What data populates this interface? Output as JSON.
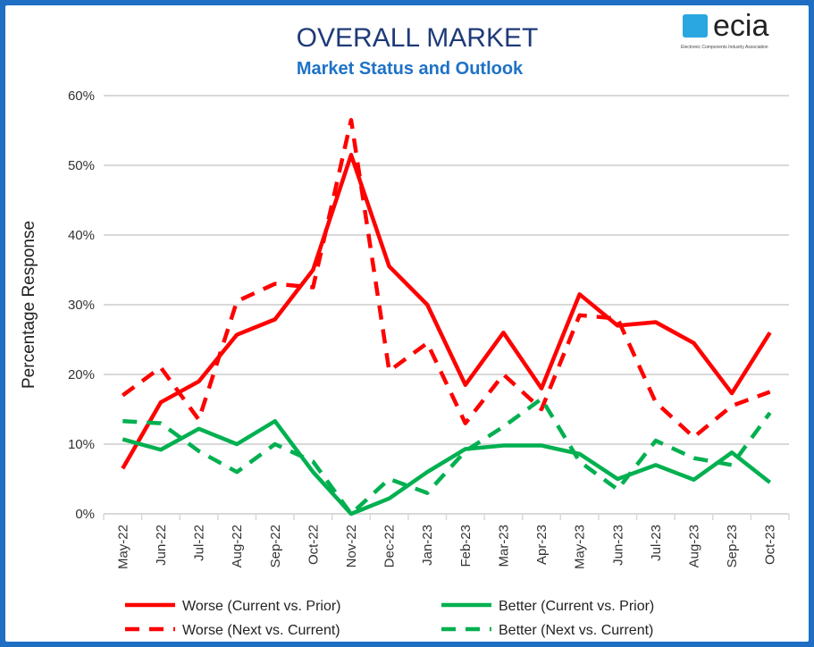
{
  "chart_data": {
    "type": "line",
    "title": "OVERALL MARKET",
    "subtitle": "Market Status and Outlook",
    "ylabel": "Percentage Response",
    "xlabel": "",
    "ylim": [
      0,
      60
    ],
    "yticks": [
      "0%",
      "10%",
      "20%",
      "30%",
      "40%",
      "50%",
      "60%"
    ],
    "grid": true,
    "legend_position": "bottom",
    "categories": [
      "May-22",
      "Jun-22",
      "Jul-22",
      "Aug-22",
      "Sep-22",
      "Oct-22",
      "Nov-22",
      "Dec-22",
      "Jan-23",
      "Feb-23",
      "Mar-23",
      "Apr-23",
      "May-23",
      "Jun-23",
      "Jul-23",
      "Aug-23",
      "Sep-23",
      "Oct-23"
    ],
    "series": [
      {
        "name": "Worse (Current vs. Prior)",
        "color": "#ff0000",
        "dashed": false,
        "values": [
          6.5,
          16,
          19,
          25.7,
          27.9,
          35,
          51.5,
          35.5,
          30,
          18.5,
          26,
          18,
          31.5,
          27,
          27.5,
          24.5,
          17.3,
          26
        ]
      },
      {
        "name": "Better (Current vs. Prior)",
        "color": "#00b050",
        "dashed": false,
        "values": [
          10.7,
          9.2,
          12.2,
          10,
          13.3,
          6,
          0,
          2.2,
          6,
          9.3,
          9.8,
          9.8,
          8.6,
          5,
          7,
          4.9,
          8.8,
          4.5
        ]
      },
      {
        "name": "Worse (Next vs. Current)",
        "color": "#ff0000",
        "dashed": true,
        "values": [
          17,
          21,
          13.5,
          30.5,
          33,
          32.5,
          56.5,
          20.5,
          24.5,
          13,
          20,
          15,
          28.5,
          28,
          16,
          11,
          15.5,
          17.5
        ]
      },
      {
        "name": "Better (Next vs. Current)",
        "color": "#00b050",
        "dashed": true,
        "values": [
          13.3,
          13,
          9,
          6,
          10,
          7.5,
          0,
          5,
          3,
          9,
          12.5,
          16.5,
          7.5,
          3.5,
          10.5,
          8,
          7,
          14.5
        ]
      }
    ]
  },
  "logo": {
    "word": "ecia",
    "tagline": "Electronic Components Industry Association"
  }
}
